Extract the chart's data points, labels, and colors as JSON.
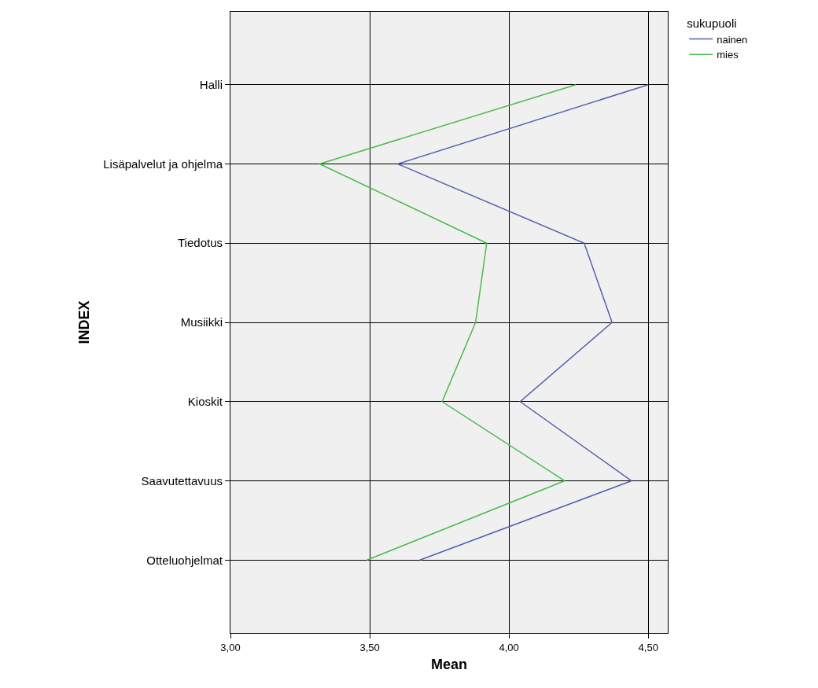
{
  "chart_data": {
    "type": "line",
    "orientation": "horizontal",
    "xlabel": "Mean",
    "ylabel": "INDEX",
    "legend_title": "sukupuoli",
    "categories": [
      "Halli",
      "Lisäpalvelut ja ohjelma",
      "Tiedotus",
      "Musiikki",
      "Kioskit",
      "Saavutettavuus",
      "Otteluohjelmat"
    ],
    "series": [
      {
        "name": "nainen",
        "color": "#5560b0",
        "values": [
          4.5,
          3.6,
          4.27,
          4.37,
          4.04,
          4.44,
          3.68
        ]
      },
      {
        "name": "mies",
        "color": "#4cbb4c",
        "values": [
          4.24,
          3.32,
          3.92,
          3.88,
          3.76,
          4.2,
          3.49
        ]
      }
    ],
    "xlim": [
      3.0,
      4.57
    ],
    "xticks": [
      {
        "value": 3.0,
        "label": "3,00"
      },
      {
        "value": 3.5,
        "label": "3,50"
      },
      {
        "value": 4.0,
        "label": "4,00"
      },
      {
        "value": 4.5,
        "label": "4,50"
      }
    ],
    "grid": true,
    "legend": "top right",
    "marker": "none",
    "line_style": "solid"
  }
}
